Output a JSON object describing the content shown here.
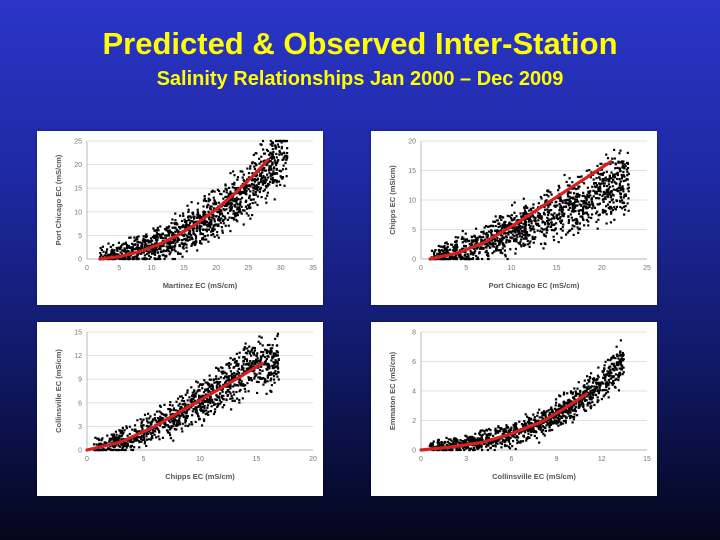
{
  "header": {
    "title": "Predicted & Observed Inter-Station",
    "subtitle": "Salinity Relationships Jan 2000 – Dec 2009"
  },
  "colors": {
    "observed_points": "#000000",
    "predicted_curve": "#d42020"
  },
  "chart_data": [
    {
      "type": "scatter",
      "xlabel": "Martinez EC (mS/cm)",
      "ylabel": "Port Chicago EC (mS/cm)",
      "xlim": [
        0,
        35
      ],
      "ylim": [
        0,
        25
      ],
      "xticks": [
        0,
        5,
        10,
        15,
        20,
        25,
        30,
        35
      ],
      "yticks": [
        0,
        5,
        10,
        15,
        20,
        25
      ],
      "series": [
        {
          "name": "Observed",
          "cloud": {
            "x_range": [
              2,
              31
            ],
            "center": [
              [
                2,
                0.3
              ],
              [
                10,
                2.5
              ],
              [
                15,
                5.5
              ],
              [
                20,
                9.5
              ],
              [
                25,
                15
              ],
              [
                28,
                19
              ],
              [
                30,
                22
              ]
            ],
            "spread": 3.2,
            "count": 1300
          }
        },
        {
          "name": "Predicted",
          "x": [
            2,
            5,
            8,
            11,
            14,
            17,
            20,
            23,
            26,
            28
          ],
          "y": [
            0,
            0.5,
            1.5,
            3,
            5,
            7.5,
            10.5,
            14,
            18,
            21
          ]
        }
      ]
    },
    {
      "type": "scatter",
      "xlabel": "Port Chicago EC (mS/cm)",
      "ylabel": "Chipps EC (mS/cm)",
      "xlim": [
        0,
        25
      ],
      "ylim": [
        0,
        20
      ],
      "xticks": [
        0,
        5,
        10,
        15,
        20,
        25
      ],
      "yticks": [
        0,
        5,
        10,
        15,
        20
      ],
      "series": [
        {
          "name": "Observed",
          "cloud": {
            "x_range": [
              1,
              23
            ],
            "center": [
              [
                1,
                0.2
              ],
              [
                5,
                1.5
              ],
              [
                10,
                4.5
              ],
              [
                15,
                8
              ],
              [
                20,
                11.5
              ],
              [
                23,
                13
              ]
            ],
            "spread": 2.8,
            "count": 1300
          }
        },
        {
          "name": "Predicted",
          "x": [
            1,
            4,
            7,
            10,
            13,
            16,
            19,
            21
          ],
          "y": [
            0,
            1,
            2.8,
            5.5,
            8.5,
            11.5,
            14.5,
            16.5
          ]
        }
      ]
    },
    {
      "type": "scatter",
      "xlabel": "Chipps EC (mS/cm)",
      "ylabel": "Collinsville EC (mS/cm)",
      "xlim": [
        0,
        20
      ],
      "ylim": [
        0,
        15
      ],
      "xticks": [
        0,
        5,
        10,
        15,
        20
      ],
      "yticks": [
        0,
        3,
        6,
        9,
        12,
        15
      ],
      "series": [
        {
          "name": "Observed",
          "cloud": {
            "x_range": [
              0.5,
              17
            ],
            "center": [
              [
                0.5,
                0.1
              ],
              [
                4,
                1.5
              ],
              [
                8,
                4.5
              ],
              [
                11,
                7
              ],
              [
                13,
                9
              ],
              [
                15,
                11
              ]
            ],
            "spread": 1.7,
            "count": 1100
          }
        },
        {
          "name": "Predicted",
          "x": [
            0,
            3,
            6,
            9,
            12,
            15.5
          ],
          "y": [
            0,
            1,
            3,
            5.5,
            8,
            11
          ]
        }
      ]
    },
    {
      "type": "scatter",
      "xlabel": "Collinsville EC (mS/cm)",
      "ylabel": "Emmaton EC (mS/cm)",
      "xlim": [
        0,
        15
      ],
      "ylim": [
        0,
        8
      ],
      "xticks": [
        0,
        3,
        6,
        9,
        12,
        15
      ],
      "yticks": [
        0,
        2,
        4,
        6,
        8
      ],
      "series": [
        {
          "name": "Observed",
          "cloud": {
            "x_range": [
              0.5,
              13.5
            ],
            "center": [
              [
                0.5,
                0.15
              ],
              [
                3,
                0.4
              ],
              [
                6,
                1
              ],
              [
                8,
                1.8
              ],
              [
                10,
                3
              ],
              [
                12,
                4.5
              ],
              [
                13.5,
                6
              ]
            ],
            "spread": 0.6,
            "count": 1100
          }
        },
        {
          "name": "Predicted",
          "x": [
            0,
            2,
            4,
            6,
            8,
            9.5,
            11
          ],
          "y": [
            0,
            0.2,
            0.5,
            1.1,
            1.9,
            2.8,
            3.8
          ]
        }
      ]
    }
  ]
}
